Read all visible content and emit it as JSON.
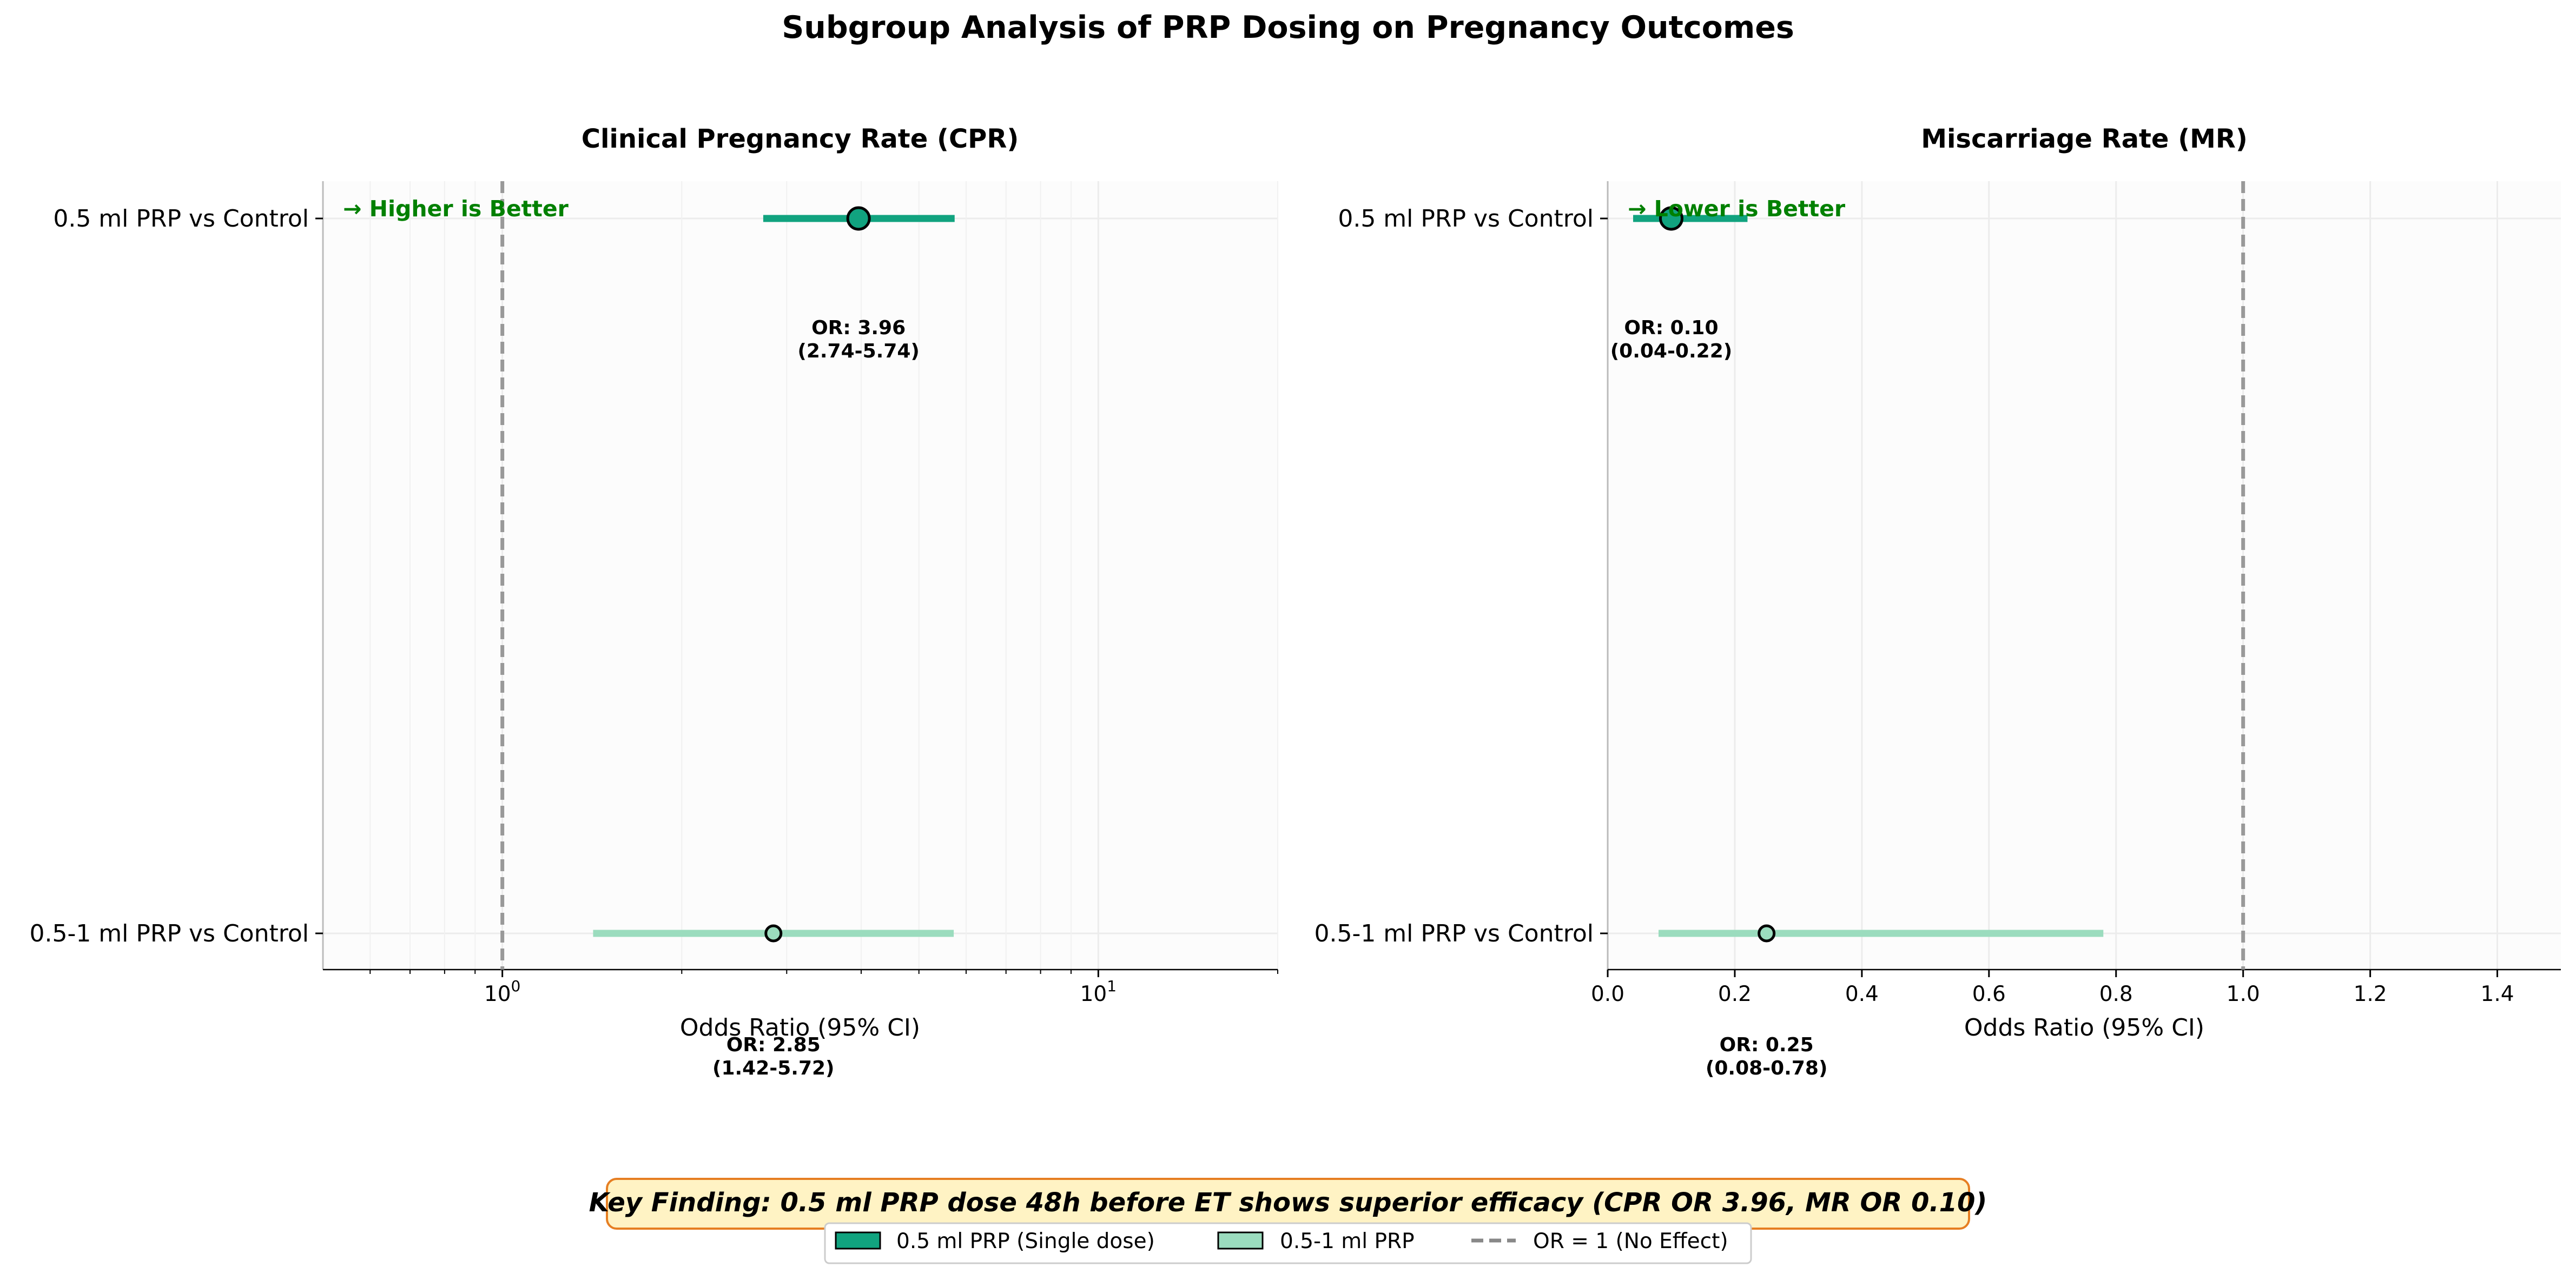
{
  "title": "Subgroup Analysis of PRP Dosing on Pregnancy Outcomes",
  "colors": {
    "series_a": "#11a37f",
    "series_b": "#9bdcbe",
    "reference": "#999999",
    "direction_text": "#008000",
    "finding_bg": "#fff3c4",
    "finding_border": "#e67e22"
  },
  "chart_data": [
    {
      "type": "forest",
      "title": "Clinical Pregnancy Rate (CPR)",
      "xlabel": "Odds Ratio (95% CI)",
      "xscale": "log",
      "xlim": [
        0.5,
        20
      ],
      "xticks": [
        {
          "value": 1,
          "base": "10",
          "exp": "0"
        },
        {
          "value": 10,
          "base": "10",
          "exp": "1"
        }
      ],
      "reference_line": 1,
      "direction_label": "→ Higher is Better",
      "categories": [
        "0.5 ml PRP vs Control",
        "0.5-1 ml PRP vs Control"
      ],
      "rows": [
        {
          "category": "0.5 ml PRP vs Control",
          "series": "0.5 ml PRP (Single dose)",
          "or": 3.96,
          "ci_low": 2.74,
          "ci_high": 5.74,
          "label_line1": "OR: 3.96",
          "label_line2": "(2.74-5.74)"
        },
        {
          "category": "0.5-1 ml PRP vs Control",
          "series": "0.5-1 ml PRP",
          "or": 2.85,
          "ci_low": 1.42,
          "ci_high": 5.72,
          "label_line1": "OR: 2.85",
          "label_line2": "(1.42-5.72)"
        }
      ]
    },
    {
      "type": "forest",
      "title": "Miscarriage Rate (MR)",
      "xlabel": "Odds Ratio (95% CI)",
      "xscale": "linear",
      "xlim": [
        0,
        1.5
      ],
      "xticks": [
        {
          "value": 0,
          "label": "0.0"
        },
        {
          "value": 0.2,
          "label": "0.2"
        },
        {
          "value": 0.4,
          "label": "0.4"
        },
        {
          "value": 0.6,
          "label": "0.6"
        },
        {
          "value": 0.8,
          "label": "0.8"
        },
        {
          "value": 1.0,
          "label": "1.0"
        },
        {
          "value": 1.2,
          "label": "1.2"
        },
        {
          "value": 1.4,
          "label": "1.4"
        }
      ],
      "reference_line": 1,
      "direction_label": "→ Lower is Better",
      "categories": [
        "0.5 ml PRP vs Control",
        "0.5-1 ml PRP vs Control"
      ],
      "rows": [
        {
          "category": "0.5 ml PRP vs Control",
          "series": "0.5 ml PRP (Single dose)",
          "or": 0.1,
          "ci_low": 0.04,
          "ci_high": 0.22,
          "label_line1": "OR: 0.10",
          "label_line2": "(0.04-0.22)"
        },
        {
          "category": "0.5-1 ml PRP vs Control",
          "series": "0.5-1 ml PRP",
          "or": 0.25,
          "ci_low": 0.08,
          "ci_high": 0.78,
          "label_line1": "OR: 0.25",
          "label_line2": "(0.08-0.78)"
        }
      ]
    }
  ],
  "key_finding": "Key Finding: 0.5 ml PRP dose 48h before ET shows superior efficacy (CPR OR 3.96, MR OR 0.10)",
  "legend": {
    "series_a": "0.5 ml PRP (Single dose)",
    "series_b": "0.5-1 ml PRP",
    "reference": "OR = 1 (No Effect)"
  }
}
